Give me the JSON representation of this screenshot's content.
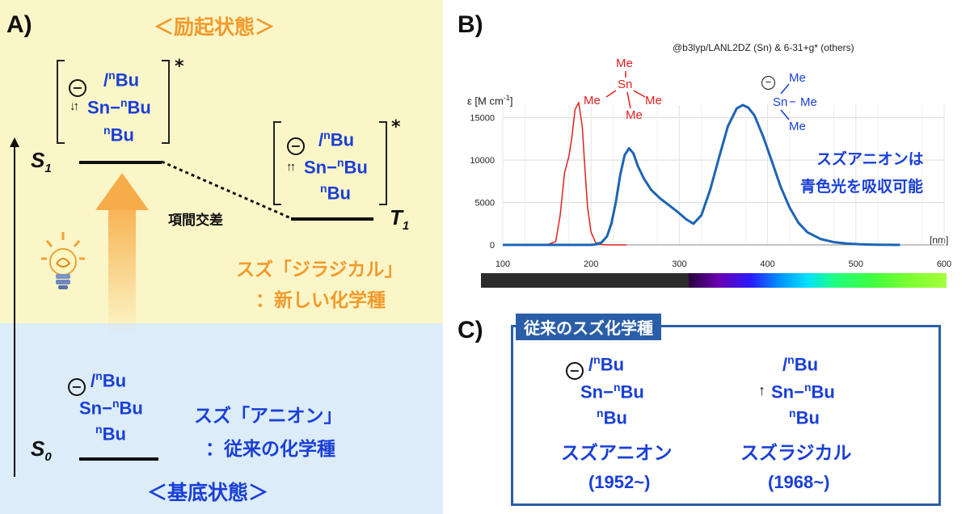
{
  "panelA": {
    "label": "A)",
    "excited_state": "＜励起状態＞",
    "ground_state": "＜基底状態＞",
    "s1": "S",
    "s1_sub": "1",
    "s0": "S",
    "s0_sub": "0",
    "t1": "T",
    "t1_sub": "1",
    "isc": "項間交差",
    "star": "*",
    "minus": "−",
    "diradical_line1": "スズ「ジラジカル」",
    "diradical_line2": "：新しい化学種",
    "anion_line1": "スズ「アニオン」",
    "anion_line2": "：従来の化学種",
    "sn": "Sn",
    "bu_n": "n",
    "bu": "Bu",
    "dash": "−",
    "spin_paired": "↓↑",
    "spin_parallel": "↑↑",
    "colors": {
      "yellow_bg": "#fbf6c8",
      "blue_bg": "#dcecf8",
      "orange": "#f39a2c",
      "blue": "#1a3fd6"
    }
  },
  "panelB": {
    "label": "B)",
    "method": "@b3lyp/LANL2DZ (Sn) & 6-31+g* (others)",
    "y_axis_label": "ε [M cm",
    "y_axis_sup": "-1",
    "y_axis_close": "]",
    "x_axis_unit": "[nm]",
    "neutral_me": "Me",
    "neutral_sn": "Sn",
    "anion_me": "Me",
    "anion_sn": "Sn",
    "anion_dash": "−",
    "note_line1": "スズアニオンは",
    "note_line2": "青色光を吸収可能"
  },
  "chart_data": {
    "type": "line",
    "xlim": [
      100,
      600
    ],
    "ylim": [
      0,
      16500
    ],
    "x_ticks": [
      100,
      200,
      300,
      400,
      500,
      600
    ],
    "y_ticks": [
      0,
      5000,
      10000,
      15000
    ],
    "grid": true,
    "series": [
      {
        "color": "#e21f1f",
        "x": [
          100,
          150,
          160,
          165,
          170,
          175,
          178,
          182,
          186,
          190,
          193,
          196,
          200,
          205,
          212,
          220,
          230,
          240
        ],
        "y": [
          0,
          0,
          400,
          3500,
          8500,
          10500,
          12500,
          16000,
          16800,
          14000,
          9000,
          4500,
          1500,
          300,
          50,
          0,
          0,
          0
        ]
      },
      {
        "color": "#1c64b4",
        "x": [
          100,
          200,
          205,
          212,
          218,
          223,
          228,
          233,
          238,
          243,
          248,
          253,
          260,
          268,
          278,
          288,
          298,
          308,
          316,
          325,
          335,
          345,
          355,
          365,
          372,
          378,
          385,
          395,
          405,
          415,
          425,
          435,
          445,
          460,
          475,
          490,
          505,
          520,
          535,
          550
        ],
        "y": [
          0,
          0,
          50,
          300,
          1000,
          2500,
          5000,
          8200,
          10600,
          11400,
          10800,
          9300,
          7800,
          6500,
          5500,
          4700,
          3900,
          3000,
          2500,
          3500,
          6500,
          10300,
          14000,
          16100,
          16500,
          16200,
          15300,
          12800,
          9800,
          6800,
          4400,
          2600,
          1500,
          700,
          320,
          150,
          70,
          30,
          10,
          0
        ]
      }
    ]
  },
  "panelC": {
    "label": "C)",
    "header": "従来のスズ化学種",
    "anion_name": "スズアニオン",
    "anion_year": "(1952~)",
    "radical_name": "スズラジカル",
    "radical_year": "(1968~)",
    "sn": "Sn",
    "bu_n": "n",
    "bu": "Bu",
    "dash": "−",
    "minus": "−",
    "arrow": "↑"
  }
}
